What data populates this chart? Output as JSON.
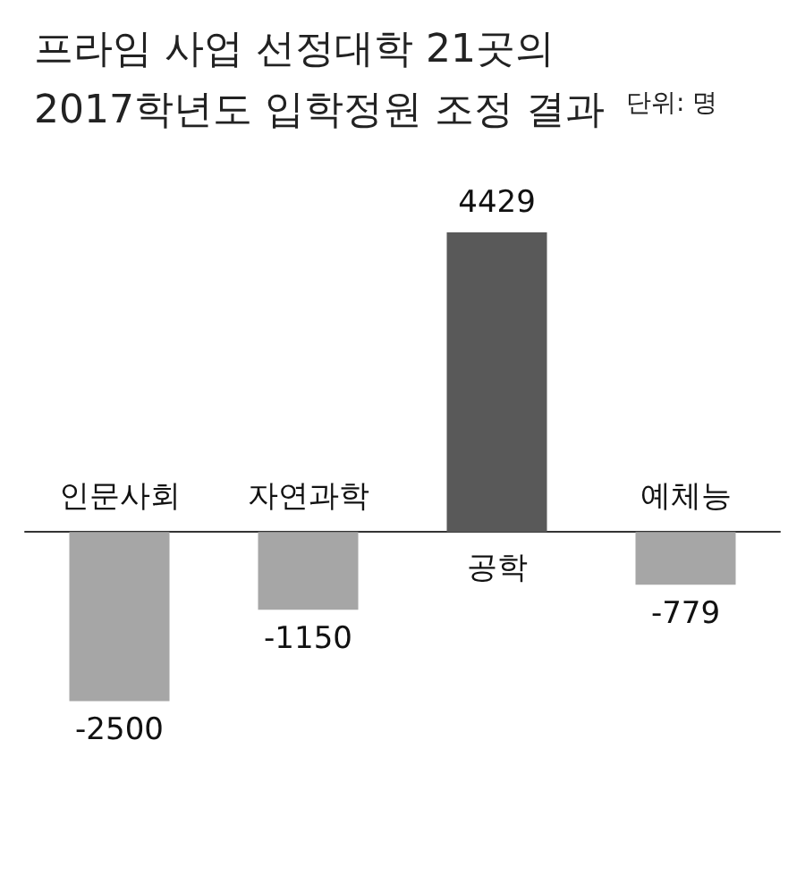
{
  "chart_data": {
    "type": "bar",
    "title": "프라임 사업 선정대학 21곳의 2017학년도 입학정원 조정 결과",
    "annotations": [
      "단위: 명"
    ],
    "categories": [
      "인문사회",
      "자연과학",
      "공학",
      "예체능"
    ],
    "values": [
      -2500,
      -1150,
      4429,
      -779
    ],
    "colors": [
      "#a6a6a6",
      "#a6a6a6",
      "#595959",
      "#a6a6a6"
    ],
    "data_labels": true
  }
}
